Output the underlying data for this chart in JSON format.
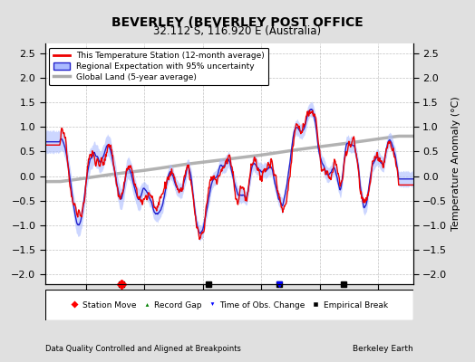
{
  "title": "BEVERLEY (BEVERLEY POST OFFICE",
  "subtitle": "32.112 S, 116.920 E (Australia)",
  "xlabel_left": "Data Quality Controlled and Aligned at Breakpoints",
  "xlabel_right": "Berkeley Earth",
  "ylabel": "Temperature Anomaly (°C)",
  "xlim": [
    1953,
    2016
  ],
  "ylim": [
    -2.2,
    2.7
  ],
  "yticks": [
    -2,
    -1.5,
    -1,
    -0.5,
    0,
    0.5,
    1,
    1.5,
    2,
    2.5
  ],
  "xticks": [
    1960,
    1970,
    1980,
    1990,
    2000,
    2010
  ],
  "station_color": "#EE0000",
  "regional_color": "#2222CC",
  "regional_fill_color": "#AABBFF",
  "global_color": "#AAAAAA",
  "background_color": "#E0E0E0",
  "plot_background": "#FFFFFF",
  "grid_color": "#BBBBBB",
  "seed": 12345
}
